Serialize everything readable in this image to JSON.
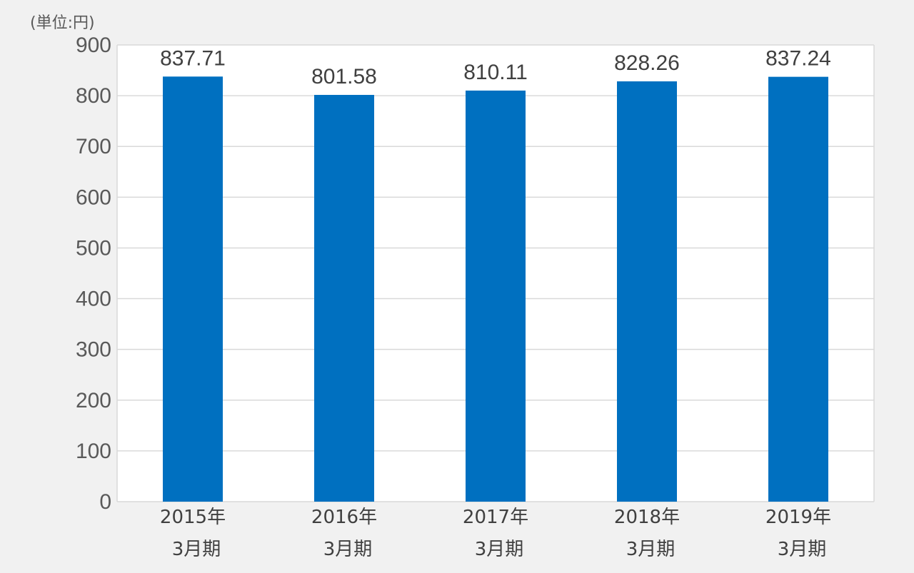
{
  "unit_label": "(単位:円)",
  "colors": {
    "bar": "#0070c0",
    "grid": "#d9d9d9",
    "plot_bg": "#ffffff",
    "page_bg": "#f1f1f1",
    "tick_text": "#595959",
    "label_text": "#404040"
  },
  "chart_data": {
    "type": "bar",
    "title": "",
    "xlabel": "",
    "ylabel": "",
    "unit": "(単位:円)",
    "categories": [
      [
        "2015年",
        "3月期"
      ],
      [
        "2016年",
        "3月期"
      ],
      [
        "2017年",
        "3月期"
      ],
      [
        "2018年",
        "3月期"
      ],
      [
        "2019年",
        "3月期"
      ]
    ],
    "values": [
      837.71,
      801.58,
      810.11,
      828.26,
      837.24
    ],
    "value_labels": [
      "837.71",
      "801.58",
      "810.11",
      "828.26",
      "837.24"
    ],
    "ylim": [
      0,
      900
    ],
    "yticks": [
      0,
      100,
      200,
      300,
      400,
      500,
      600,
      700,
      800,
      900
    ],
    "grid": true,
    "legend": "none"
  }
}
